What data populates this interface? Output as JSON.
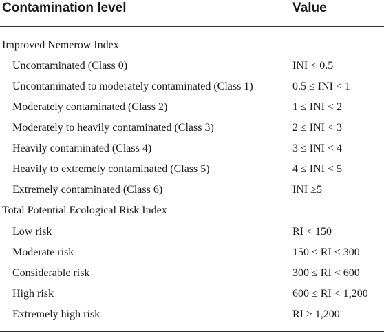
{
  "header": {
    "col1": "Contamination level",
    "col2": "Value"
  },
  "sections": [
    {
      "title": "Improved Nemerow Index",
      "rows": [
        {
          "label": "Uncontaminated (Class 0)",
          "value": "INI < 0.5"
        },
        {
          "label": "Uncontaminated to moderately contaminated (Class 1)",
          "value": "0.5 ≤ INI < 1"
        },
        {
          "label": "Moderately contaminated (Class 2)",
          "value": "1 ≤ INI < 2"
        },
        {
          "label": "Moderately to heavily contaminated (Class 3)",
          "value": "2 ≤ INI < 3"
        },
        {
          "label": "Heavily contaminated (Class 4)",
          "value": "3 ≤ INI < 4"
        },
        {
          "label": "Heavily to extremely contaminated (Class 5)",
          "value": "4 ≤ INI < 5"
        },
        {
          "label": "Extremely contaminated (Class 6)",
          "value": "INI ≥5"
        }
      ]
    },
    {
      "title": "Total Potential Ecological Risk Index",
      "rows": [
        {
          "label": "Low risk",
          "value": "RI < 150"
        },
        {
          "label": "Moderate risk",
          "value": "150 ≤ RI < 300"
        },
        {
          "label": "Considerable risk",
          "value": "300 ≤ RI < 600"
        },
        {
          "label": "High risk",
          "value": "600 ≤ RI < 1,200"
        },
        {
          "label": "Extremely high risk",
          "value": "RI ≥ 1,200"
        }
      ]
    }
  ]
}
